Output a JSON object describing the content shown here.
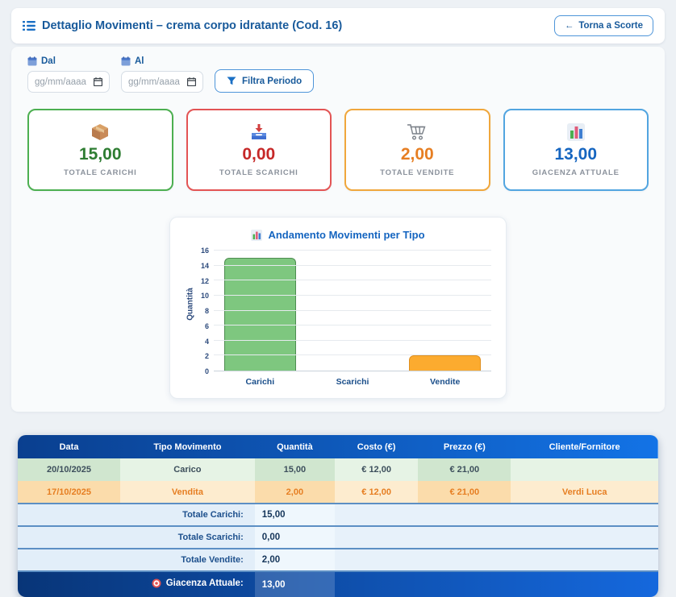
{
  "header": {
    "title": "Dettaglio Movimenti – crema corpo idratante (Cod. 16)",
    "back_arrow": "←",
    "back_label": "Torna a Scorte"
  },
  "filters": {
    "from_label": "Dal",
    "to_label": "Al",
    "date_placeholder": "gg/mm/aaaa",
    "filter_button": "Filtra Periodo"
  },
  "cards": [
    {
      "icon": "package-icon",
      "value": "15,00",
      "label": "TOTALE CARICHI",
      "value_color": "#2e7d32",
      "border_color": "#4caf50"
    },
    {
      "icon": "inbox-icon",
      "value": "0,00",
      "label": "TOTALE SCARICHI",
      "value_color": "#c62828",
      "border_color": "#e35454"
    },
    {
      "icon": "cart-icon",
      "value": "2,00",
      "label": "TOTALE VENDITE",
      "value_color": "#e67e22",
      "border_color": "#f0a73c"
    },
    {
      "icon": "bar-chart-icon",
      "value": "13,00",
      "label": "GIACENZA ATTUALE",
      "value_color": "#1565c0",
      "border_color": "#52a5e0"
    }
  ],
  "chart_data": {
    "type": "bar",
    "title": "Andamento Movimenti per Tipo",
    "categories": [
      "Carichi",
      "Scarichi",
      "Vendite"
    ],
    "values": [
      15,
      0,
      2
    ],
    "colors": [
      "#7ec77f",
      "#e05252",
      "#fcab2f"
    ],
    "border_colors": [
      "#4e8d51",
      "#b03a3a",
      "#df8f1f"
    ],
    "xlabel": "",
    "ylabel": "Quantità",
    "ylim": [
      0,
      16
    ],
    "yticks": [
      0,
      2,
      4,
      6,
      8,
      10,
      12,
      14,
      16
    ],
    "grid": true,
    "legend": false
  },
  "table": {
    "columns": [
      "Data",
      "Tipo Movimento",
      "Quantità",
      "Costo (€)",
      "Prezzo (€)",
      "Cliente/Fornitore"
    ],
    "rows": [
      {
        "type": "carico",
        "cells": [
          "20/10/2025",
          "Carico",
          "15,00",
          "€ 12,00",
          "€ 21,00",
          ""
        ]
      },
      {
        "type": "vendita",
        "cells": [
          "17/10/2025",
          "Vendita",
          "2,00",
          "€ 12,00",
          "€ 21,00",
          "Verdi Luca"
        ]
      }
    ],
    "totals": [
      {
        "label": "Totale Carichi:",
        "value": "15,00"
      },
      {
        "label": "Totale Scarichi:",
        "value": "0,00"
      },
      {
        "label": "Totale Vendite:",
        "value": "2,00"
      }
    ],
    "final": {
      "label": "Giacenza Attuale:",
      "value": "13,00"
    }
  }
}
